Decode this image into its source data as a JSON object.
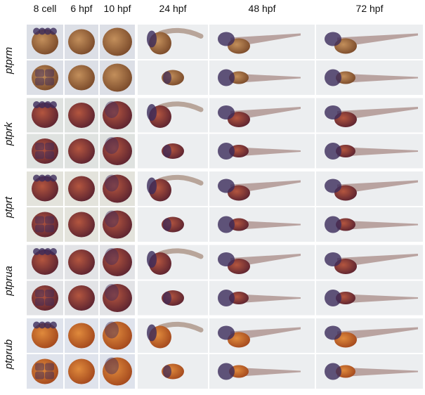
{
  "column_headers": [
    "8 cell",
    "6 hpf",
    "10 hpf",
    "24 hpf",
    "48 hpf",
    "72 hpf"
  ],
  "rows": [
    {
      "label": "ptprm"
    },
    {
      "label": "ptprk"
    },
    {
      "label": "ptprt"
    },
    {
      "label": "ptprua"
    },
    {
      "label": "ptprub"
    }
  ]
}
